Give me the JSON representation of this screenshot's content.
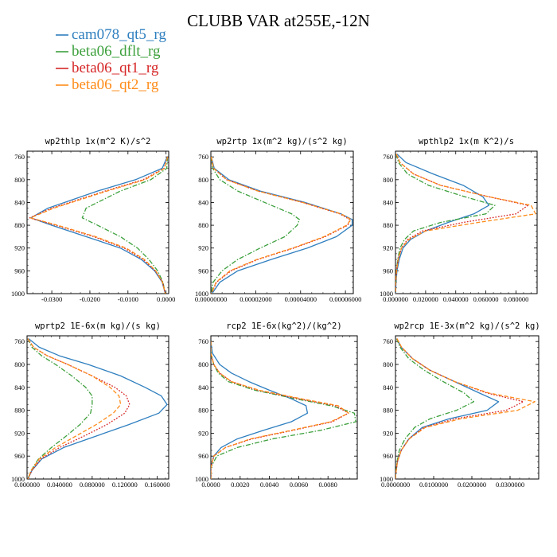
{
  "title": "CLUBB VAR at255E,-12N",
  "legend": [
    {
      "label": "cam078_qt5_rg",
      "color": "#2f7fbf",
      "dash": "solid"
    },
    {
      "label": "beta06_dflt_rg",
      "color": "#3ca03c",
      "dash": "dashdot"
    },
    {
      "label": "beta06_qt1_rg",
      "color": "#d62728",
      "dash": "dot"
    },
    {
      "label": "beta06_qt2_rg",
      "color": "#ff8c1a",
      "dash": "dash"
    }
  ],
  "chart_data": [
    {
      "type": "line",
      "title": "wp2thlp  1x(m^2 K)/s^2",
      "xlim": [
        -0.0365,
        0.0007
      ],
      "xticks": [
        -0.03,
        -0.02,
        -0.01,
        0
      ],
      "xtick_labels": [
        "-0.0300",
        "-0.0200",
        "-0.0100",
        "0.0000"
      ],
      "ylim": [
        1000,
        750
      ],
      "yticks": [
        760,
        800,
        840,
        880,
        920,
        960,
        1000
      ],
      "y": [
        760,
        780,
        800,
        820,
        850,
        867,
        880,
        900,
        920,
        940,
        960,
        980,
        1000
      ],
      "series": [
        {
          "name": "cam078_qt5_rg",
          "x": [
            0.0003,
            -0.001,
            -0.008,
            -0.018,
            -0.031,
            -0.0355,
            -0.03,
            -0.021,
            -0.012,
            -0.0065,
            -0.003,
            -0.001,
            -0.0002
          ]
        },
        {
          "name": "beta06_dflt_rg",
          "x": [
            0.0004,
            0.0002,
            -0.004,
            -0.012,
            -0.021,
            -0.022,
            -0.018,
            -0.012,
            -0.0075,
            -0.0045,
            -0.0022,
            -0.0008,
            -0.0002
          ]
        },
        {
          "name": "beta06_qt1_rg",
          "x": [
            0.0004,
            -0.0005,
            -0.006,
            -0.016,
            -0.03,
            -0.0358,
            -0.029,
            -0.019,
            -0.011,
            -0.006,
            -0.0028,
            -0.0009,
            -0.0002
          ]
        },
        {
          "name": "beta06_qt2_rg",
          "x": [
            0.0004,
            -0.0004,
            -0.0055,
            -0.0155,
            -0.0295,
            -0.0356,
            -0.0285,
            -0.0185,
            -0.0105,
            -0.0057,
            -0.0027,
            -0.0009,
            -0.0002
          ]
        }
      ]
    },
    {
      "type": "line",
      "title": "wp2rtp  1x(m^2 kg)/(s^2 kg)",
      "xlim": [
        0,
        6.35e-05
      ],
      "xticks": [
        0,
        2e-05,
        4e-05,
        6e-05
      ],
      "xtick_labels": [
        "0.00000000",
        "0.00002000",
        "0.00004000",
        "0.00006000"
      ],
      "ylim": [
        1000,
        750
      ],
      "yticks": [
        760,
        800,
        840,
        880,
        920,
        960,
        1000
      ],
      "y": [
        760,
        780,
        800,
        820,
        840,
        860,
        870,
        880,
        900,
        920,
        940,
        960,
        980,
        1000
      ],
      "series": [
        {
          "name": "cam078_qt5_rg",
          "x": [
            2e-07,
            1.5e-06,
            8e-06,
            2.2e-05,
            4.2e-05,
            5.8e-05,
            6.3e-05,
            6.3e-05,
            5.6e-05,
            4.3e-05,
            2.7e-05,
            1.2e-05,
            4e-06,
            5e-07
          ]
        },
        {
          "name": "beta06_dflt_rg",
          "x": [
            1e-07,
            8e-07,
            4e-06,
            1.2e-05,
            2.4e-05,
            3.6e-05,
            3.95e-05,
            3.85e-05,
            3.3e-05,
            2.2e-05,
            1.2e-05,
            5e-06,
            1e-06,
            2e-07
          ]
        },
        {
          "name": "beta06_qt1_rg",
          "x": [
            2e-07,
            1.2e-06,
            7e-06,
            2.1e-05,
            4.1e-05,
            5.75e-05,
            6.2e-05,
            6.1e-05,
            5.1e-05,
            3.7e-05,
            2.1e-05,
            9e-06,
            2.5e-06,
            3e-07
          ]
        },
        {
          "name": "beta06_qt2_rg",
          "x": [
            2e-07,
            1.2e-06,
            7e-06,
            2.1e-05,
            4.1e-05,
            5.8e-05,
            6.25e-05,
            6.05e-05,
            5.05e-05,
            3.65e-05,
            2.05e-05,
            8.5e-06,
            2.3e-06,
            3e-07
          ]
        }
      ]
    },
    {
      "type": "line",
      "title": "wpthlp2  1x(m K^2)/s",
      "xlim": [
        0,
        0.094
      ],
      "xticks": [
        0,
        0.02,
        0.04,
        0.06,
        0.08
      ],
      "xtick_labels": [
        "0.000000",
        "0.020000",
        "0.040000",
        "0.060000",
        "0.080000"
      ],
      "ylim": [
        1000,
        750
      ],
      "yticks": [
        760,
        800,
        840,
        880,
        920,
        960,
        1000
      ],
      "y": [
        755,
        770,
        790,
        810,
        830,
        845,
        860,
        875,
        890,
        905,
        920,
        940,
        960,
        980,
        1000
      ],
      "series": [
        {
          "name": "cam078_qt5_rg",
          "x": [
            0.001,
            0.007,
            0.025,
            0.045,
            0.058,
            0.062,
            0.052,
            0.035,
            0.02,
            0.01,
            0.005,
            0.0025,
            0.001,
            0.0004,
            0.0001
          ]
        },
        {
          "name": "beta06_dflt_rg",
          "x": [
            0.0005,
            0.002,
            0.008,
            0.022,
            0.046,
            0.066,
            0.06,
            0.03,
            0.012,
            0.006,
            0.003,
            0.0015,
            0.0006,
            0.0002,
            0.0001
          ]
        },
        {
          "name": "beta06_qt1_rg",
          "x": [
            0.0006,
            0.003,
            0.012,
            0.03,
            0.062,
            0.088,
            0.08,
            0.045,
            0.018,
            0.008,
            0.004,
            0.0018,
            0.0007,
            0.0002,
            0.0001
          ]
        },
        {
          "name": "beta06_qt2_rg",
          "x": [
            0.0006,
            0.003,
            0.012,
            0.03,
            0.062,
            0.09,
            0.093,
            0.055,
            0.02,
            0.009,
            0.004,
            0.0018,
            0.0007,
            0.0002,
            0.0001
          ]
        }
      ]
    },
    {
      "type": "line",
      "title": "wprtp2  1E-6x(m kg)/(s kg)",
      "xlim": [
        0,
        0.174
      ],
      "xticks": [
        0,
        0.04,
        0.08,
        0.12,
        0.16
      ],
      "xtick_labels": [
        "0.000000",
        "0.040000",
        "0.080000",
        "0.120000",
        "0.160000"
      ],
      "ylim": [
        1000,
        750
      ],
      "yticks": [
        760,
        800,
        840,
        880,
        920,
        960,
        1000
      ],
      "y": [
        755,
        770,
        785,
        800,
        820,
        840,
        855,
        870,
        885,
        905,
        925,
        945,
        965,
        985,
        1000
      ],
      "series": [
        {
          "name": "cam078_qt5_rg",
          "x": [
            0.002,
            0.015,
            0.04,
            0.075,
            0.115,
            0.145,
            0.165,
            0.172,
            0.162,
            0.125,
            0.085,
            0.045,
            0.018,
            0.006,
            0.001
          ]
        },
        {
          "name": "beta06_dflt_rg",
          "x": [
            0.001,
            0.006,
            0.018,
            0.035,
            0.055,
            0.072,
            0.08,
            0.08,
            0.078,
            0.065,
            0.048,
            0.03,
            0.014,
            0.005,
            0.001
          ]
        },
        {
          "name": "beta06_qt1_rg",
          "x": [
            0.001,
            0.008,
            0.025,
            0.05,
            0.08,
            0.108,
            0.122,
            0.126,
            0.12,
            0.098,
            0.07,
            0.04,
            0.017,
            0.006,
            0.001
          ]
        },
        {
          "name": "beta06_qt2_rg",
          "x": [
            0.001,
            0.008,
            0.025,
            0.05,
            0.08,
            0.102,
            0.113,
            0.115,
            0.106,
            0.085,
            0.06,
            0.035,
            0.015,
            0.005,
            0.001
          ]
        }
      ]
    },
    {
      "type": "line",
      "title": "rcp2  1E-6x(kg^2)/(kg^2)",
      "xlim": [
        0,
        0.01
      ],
      "xticks": [
        0,
        0.002,
        0.004,
        0.006,
        0.008
      ],
      "xtick_labels": [
        "0.0000",
        "0.0020",
        "0.0040",
        "0.0060",
        "0.0080"
      ],
      "ylim": [
        1000,
        750
      ],
      "yticks": [
        760,
        800,
        840,
        880,
        920,
        960,
        1000
      ],
      "y": [
        760,
        780,
        800,
        815,
        830,
        845,
        860,
        872,
        885,
        900,
        915,
        930,
        945,
        960,
        980,
        1000
      ],
      "series": [
        {
          "name": "cam078_qt5_rg",
          "x": [
            0,
            0.0001,
            0.0006,
            0.0014,
            0.0026,
            0.004,
            0.0055,
            0.0065,
            0.0066,
            0.0055,
            0.0036,
            0.0018,
            0.0007,
            0.0002,
            0,
            0
          ]
        },
        {
          "name": "beta06_dflt_rg",
          "x": [
            0,
            0,
            0.0002,
            0.0005,
            0.0012,
            0.003,
            0.0058,
            0.0082,
            0.0098,
            0.0099,
            0.0075,
            0.0042,
            0.0018,
            0.0004,
            0,
            0
          ]
        },
        {
          "name": "beta06_qt1_rg",
          "x": [
            0,
            0,
            0.0002,
            0.0006,
            0.0014,
            0.0032,
            0.006,
            0.0085,
            0.0094,
            0.0083,
            0.0056,
            0.0028,
            0.001,
            0.0002,
            0,
            0
          ]
        },
        {
          "name": "beta06_qt2_rg",
          "x": [
            0,
            0,
            0.0002,
            0.0006,
            0.0014,
            0.0033,
            0.0062,
            0.0087,
            0.0094,
            0.0082,
            0.0055,
            0.0027,
            0.001,
            0.0002,
            0,
            0
          ]
        }
      ]
    },
    {
      "type": "line",
      "title": "wp2rcp  1E-3x(m^2 kg)/(s^2 kg)",
      "xlim": [
        0,
        0.0375
      ],
      "xticks": [
        0,
        0.01,
        0.02,
        0.03
      ],
      "xtick_labels": [
        "0.0000000",
        "0.0100000",
        "0.0200000",
        "0.0300000"
      ],
      "ylim": [
        1000,
        750
      ],
      "yticks": [
        760,
        800,
        840,
        880,
        920,
        960,
        1000
      ],
      "y": [
        755,
        770,
        790,
        810,
        830,
        850,
        865,
        880,
        895,
        910,
        930,
        950,
        970,
        990,
        1000
      ],
      "series": [
        {
          "name": "cam078_qt5_rg",
          "x": [
            0.0003,
            0.0015,
            0.0045,
            0.009,
            0.0155,
            0.022,
            0.027,
            0.024,
            0.014,
            0.007,
            0.0035,
            0.0015,
            0.0005,
            0.0001,
            0
          ]
        },
        {
          "name": "beta06_dflt_rg",
          "x": [
            0.0003,
            0.0012,
            0.0035,
            0.0075,
            0.0125,
            0.018,
            0.0205,
            0.016,
            0.009,
            0.005,
            0.0025,
            0.001,
            0.0004,
            0.0001,
            0
          ]
        },
        {
          "name": "beta06_qt1_rg",
          "x": [
            0.0004,
            0.0016,
            0.0045,
            0.009,
            0.0155,
            0.024,
            0.0335,
            0.029,
            0.0155,
            0.0075,
            0.0035,
            0.0015,
            0.0005,
            0.0001,
            0
          ]
        },
        {
          "name": "beta06_qt2_rg",
          "x": [
            0.0004,
            0.0016,
            0.0045,
            0.009,
            0.0155,
            0.0245,
            0.0365,
            0.032,
            0.017,
            0.0078,
            0.0036,
            0.0015,
            0.0005,
            0.0001,
            0
          ]
        }
      ]
    }
  ]
}
